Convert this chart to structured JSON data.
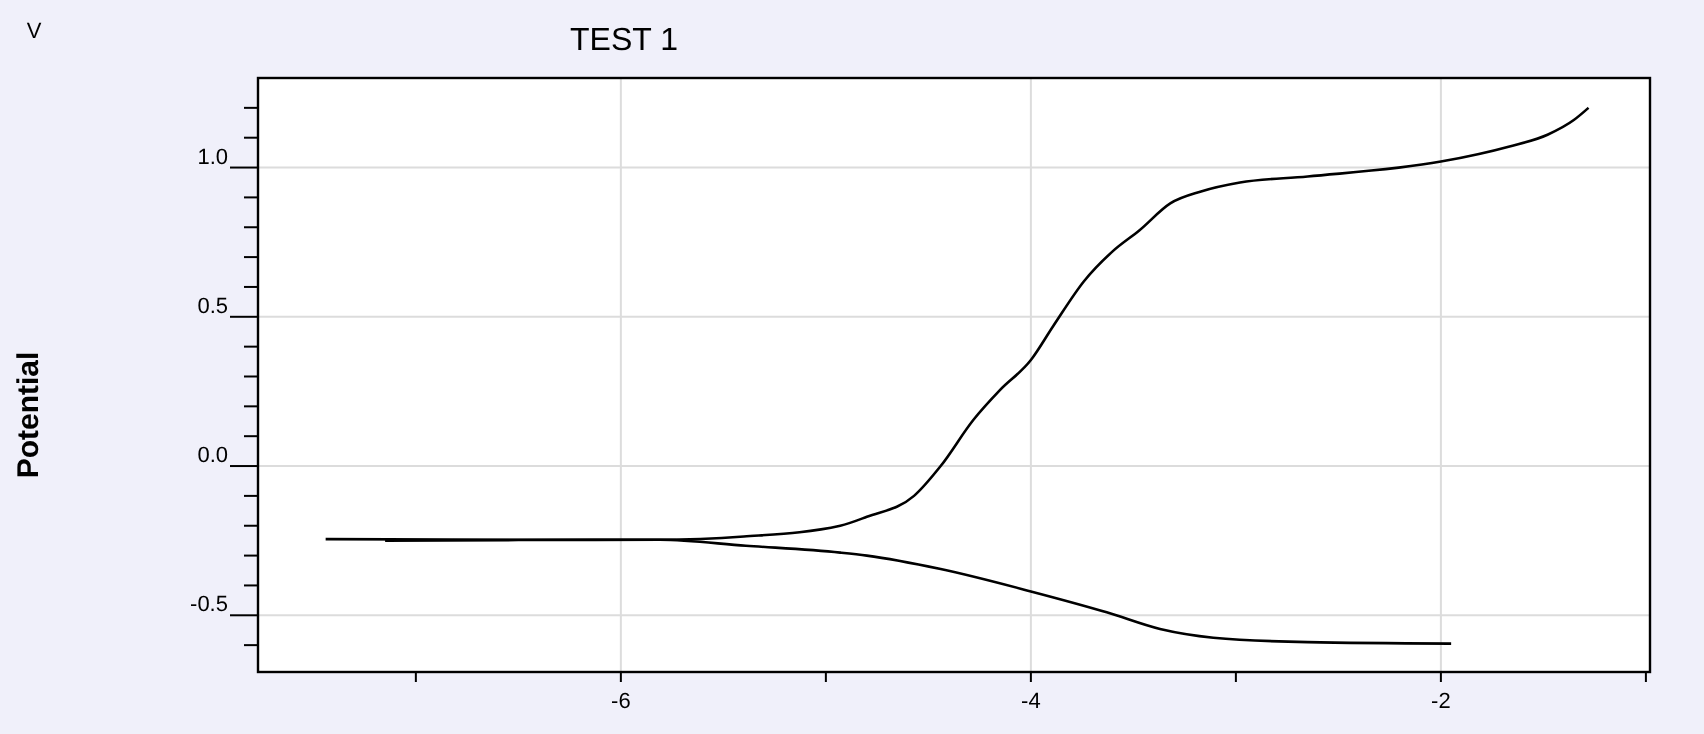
{
  "chart_data": {
    "type": "line",
    "title": "TEST 1",
    "ylabel": "Potential",
    "annotations": [
      "V"
    ],
    "xlim": [
      -7.77,
      -0.98
    ],
    "ylim": [
      -0.69,
      1.3
    ],
    "xticks": [
      {
        "value": -7,
        "label": null
      },
      -6,
      {
        "value": -5,
        "label": null
      },
      -4,
      {
        "value": -3,
        "label": null
      },
      -2,
      {
        "value": -1,
        "label": null
      }
    ],
    "yticks": [
      {
        "value": -0.6,
        "label": null
      },
      {
        "value": -0.5,
        "label": "-0.5"
      },
      {
        "value": -0.4,
        "label": null
      },
      {
        "value": -0.3,
        "label": null
      },
      {
        "value": -0.2,
        "label": null
      },
      {
        "value": -0.1,
        "label": null
      },
      {
        "value": 0,
        "label": "0.0"
      },
      {
        "value": 0.1,
        "label": null
      },
      {
        "value": 0.2,
        "label": null
      },
      {
        "value": 0.3,
        "label": null
      },
      {
        "value": 0.4,
        "label": null
      },
      {
        "value": 0.5,
        "label": "0.5"
      },
      {
        "value": 0.6,
        "label": null
      },
      {
        "value": 0.7,
        "label": null
      },
      {
        "value": 0.8,
        "label": null
      },
      {
        "value": 0.9,
        "label": null
      },
      {
        "value": 1,
        "label": "1.0"
      },
      {
        "value": 1.1,
        "label": null
      },
      {
        "value": 1.2,
        "label": null
      }
    ],
    "grid": true,
    "marker": "none",
    "line_style": "solid",
    "series": [
      {
        "color": "#000000",
        "x": [
          -7.44,
          -6.5,
          -5.81,
          -5.4,
          -4.93,
          -4.8,
          -4.57,
          -4.44,
          -4.28,
          -4.15,
          -4.0,
          -3.89,
          -3.74,
          -3.6,
          -3.47,
          -3.32,
          -3.17,
          -2.98,
          -2.65,
          -2.0,
          -1.67,
          -1.48,
          -1.35,
          -1.28
        ],
        "values": [
          -0.245,
          -0.247,
          -0.247,
          -0.236,
          -0.2,
          -0.17,
          -0.1,
          0.0,
          0.155,
          0.255,
          0.355,
          0.47,
          0.62,
          0.72,
          0.79,
          0.88,
          0.92,
          0.95,
          0.97,
          1.02,
          1.07,
          1.11,
          1.16,
          1.2
        ]
      },
      {
        "color": "#000000",
        "x": [
          -7.15,
          -6.5,
          -5.81,
          -5.39,
          -4.93,
          -4.8,
          -4.44,
          -4.0,
          -3.63,
          -3.37,
          -3.11,
          -2.65,
          -1.95
        ],
        "values": [
          -0.25,
          -0.248,
          -0.247,
          -0.267,
          -0.29,
          -0.3,
          -0.345,
          -0.42,
          -0.49,
          -0.546,
          -0.575,
          -0.59,
          -0.595
        ]
      }
    ]
  }
}
